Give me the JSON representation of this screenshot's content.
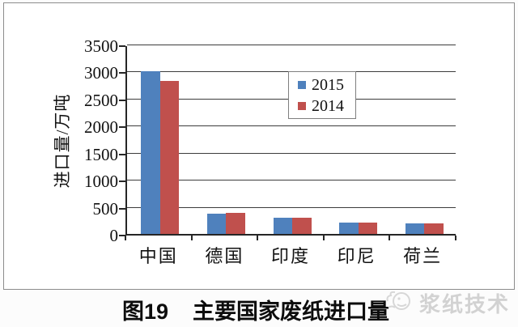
{
  "chart_data": {
    "type": "bar",
    "categories": [
      "中国",
      "德国",
      "印度",
      "印尼",
      "荷兰"
    ],
    "series": [
      {
        "name": "2015",
        "color": "#4f81bd",
        "values": [
          3000,
          380,
          295,
          215,
          190
        ]
      },
      {
        "name": "2014",
        "color": "#c0504d",
        "values": [
          2820,
          385,
          300,
          215,
          200
        ]
      }
    ],
    "ylabel": "进口量/万吨",
    "xlabel": "",
    "ylim": [
      0,
      3500
    ],
    "yticks": [
      0,
      500,
      1000,
      1500,
      2000,
      2500,
      3000,
      3500
    ],
    "grid": "horizontal",
    "legend_position": "inside-upper-middle",
    "title": "图19 主要国家废纸进口量"
  },
  "caption": {
    "figure_no": "图19",
    "title": "主要国家废纸进口量"
  },
  "watermark": {
    "text": "浆纸技术"
  },
  "colors": {
    "series_2015": "#4f81bd",
    "series_2014": "#c0504d",
    "gridline": "#3c3c3c",
    "axis": "#262626",
    "frame_border": "#8c8c8c",
    "watermark": "#d2d2d2"
  }
}
